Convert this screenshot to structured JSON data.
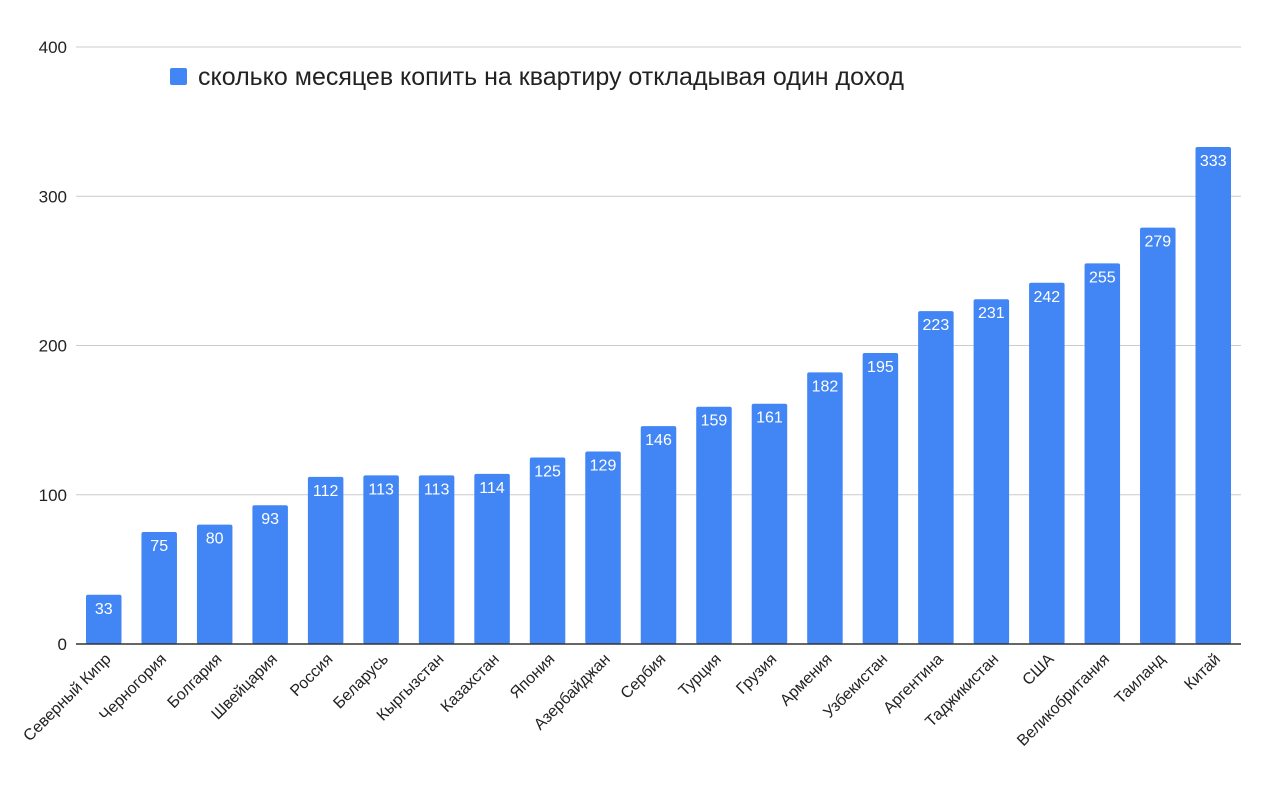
{
  "chart_data": {
    "type": "bar",
    "categories": [
      "Северный Кипр",
      "Черногория",
      "Болгария",
      "Швейцария",
      "Россия",
      "Беларусь",
      "Кыргызстан",
      "Казахстан",
      "Япония",
      "Азербайджан",
      "Сербия",
      "Турция",
      "Грузия",
      "Армения",
      "Узбекистан",
      "Аргентина",
      "Таджикистан",
      "США",
      "Великобритания",
      "Таиланд",
      "Китай"
    ],
    "series": [
      {
        "name": "сколько месяцев копить на квартиру откладывая один доход",
        "values": [
          33,
          75,
          80,
          93,
          112,
          113,
          113,
          114,
          125,
          129,
          146,
          159,
          161,
          182,
          195,
          223,
          231,
          242,
          255,
          279,
          333
        ]
      }
    ],
    "ylim": [
      0,
      400
    ],
    "yticks": [
      0,
      100,
      200,
      300,
      400
    ],
    "title": "",
    "xlabel": "",
    "ylabel": "",
    "grid": true,
    "legend_position": "top",
    "bar_color": "#4285f4",
    "grid_color": "#cccccc",
    "axis_color": "#333333"
  }
}
